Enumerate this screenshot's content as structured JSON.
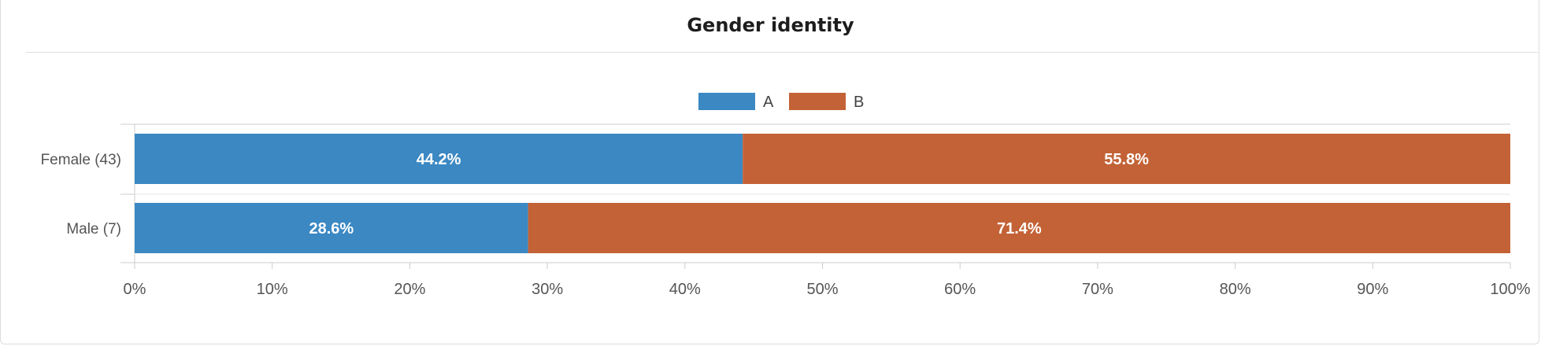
{
  "card": {
    "title": "Gender identity"
  },
  "chart_data": {
    "type": "bar",
    "orientation": "horizontal",
    "stacked": "percent",
    "categories": [
      "Female (43)",
      "Male (7)"
    ],
    "series": [
      {
        "name": "A",
        "color": "#3b88c3",
        "values": [
          44.2,
          28.6
        ],
        "labels": [
          "44.2%",
          "28.6%"
        ]
      },
      {
        "name": "B",
        "color": "#c36236",
        "values": [
          55.8,
          71.4
        ],
        "labels": [
          "55.8%",
          "71.4%"
        ]
      }
    ],
    "xlim": [
      0,
      100
    ],
    "xticks": [
      0,
      10,
      20,
      30,
      40,
      50,
      60,
      70,
      80,
      90,
      100
    ],
    "xtick_labels": [
      "0%",
      "10%",
      "20%",
      "30%",
      "40%",
      "50%",
      "60%",
      "70%",
      "80%",
      "90%",
      "100%"
    ],
    "legend": "top-center",
    "grid": false
  }
}
